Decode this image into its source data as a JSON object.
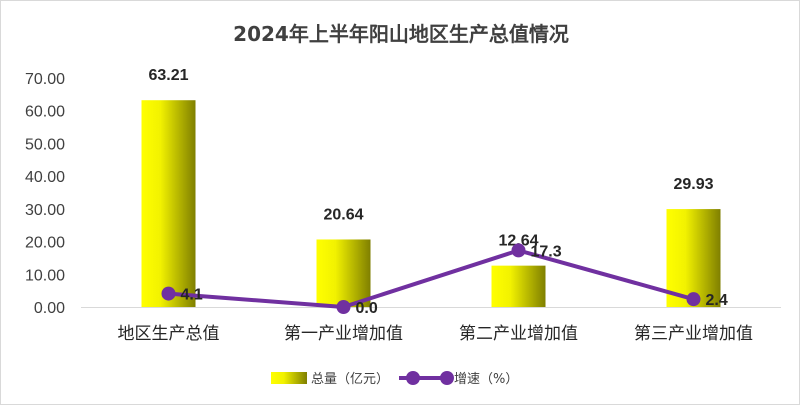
{
  "chart_data": {
    "type": "bar",
    "title": "2024年上半年阳山地区生产总值情况",
    "categories": [
      "地区生产总值",
      "第一产业增加值",
      "第二产业增加值",
      "第三产业增加值"
    ],
    "series": [
      {
        "name": "总量（亿元）",
        "type": "bar",
        "values": [
          63.21,
          20.64,
          12.64,
          29.93
        ],
        "labels": [
          "63.21",
          "20.64",
          "12.64",
          "29.93"
        ]
      },
      {
        "name": "增速（%）",
        "type": "line",
        "values": [
          4.1,
          0.0,
          17.3,
          2.4
        ],
        "labels": [
          "4.1",
          "0.0",
          "17.3",
          "2.4"
        ]
      }
    ],
    "yticks": [
      "0.00",
      "10.00",
      "20.00",
      "30.00",
      "40.00",
      "50.00",
      "60.00",
      "70.00"
    ],
    "ylim": [
      0,
      70
    ],
    "grid": false,
    "legend": "bottom",
    "colors": {
      "bar_light": "#ffff00",
      "bar_dark": "#7f7f00",
      "line": "#7030a0"
    }
  }
}
